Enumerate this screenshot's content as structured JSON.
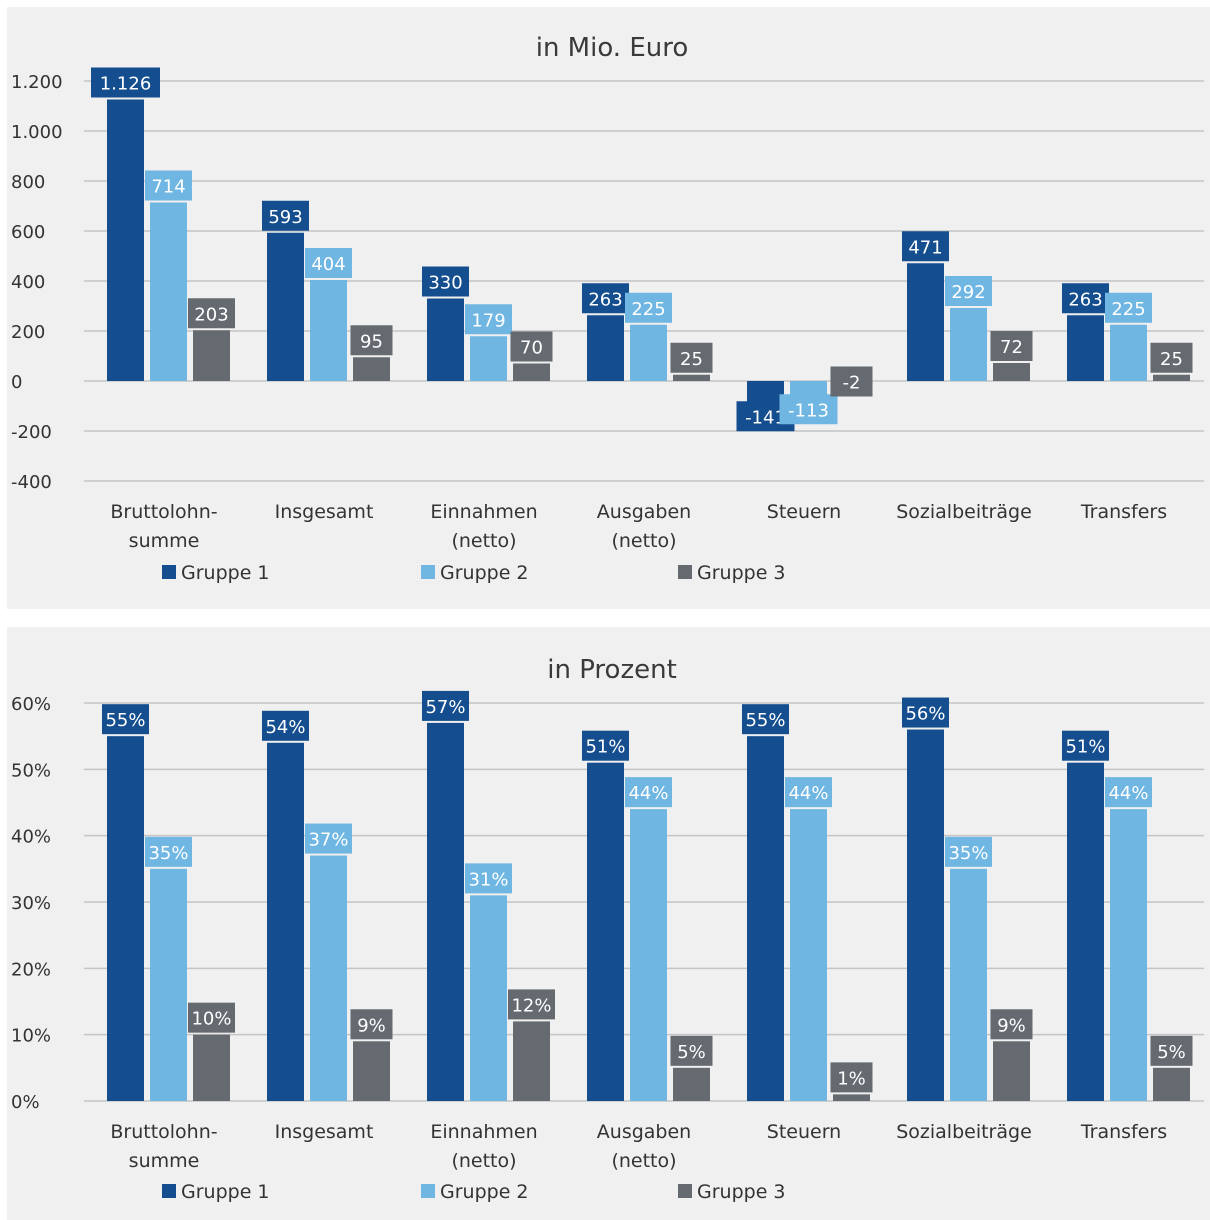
{
  "charts": [
    {
      "type": "bar",
      "title": "in Mio. Euro",
      "categories": [
        "Bruttolohn-\nsumme",
        "Insgesamt",
        "Einnahmen\n(netto)",
        "Ausgaben\n(netto)",
        "Steuern",
        "Sozialbeiträge",
        "Transfers"
      ],
      "ylim": [
        -400,
        1200
      ],
      "ytick_values": [
        -400,
        -200,
        0,
        200,
        400,
        600,
        800,
        1000,
        1200
      ],
      "ytick_labels": [
        "-400",
        "-200",
        "0",
        "200",
        "400",
        "600",
        "800",
        "1.000",
        "1.200"
      ],
      "grid": true,
      "legend_position": "bottom",
      "series": [
        {
          "name": "Gruppe 1",
          "color": "#154e8f",
          "values": [
            1126,
            593,
            330,
            263,
            -141,
            471,
            263
          ],
          "labels": [
            "1.126",
            "593",
            "330",
            "263",
            "-141",
            "471",
            "263"
          ]
        },
        {
          "name": "Gruppe 2",
          "color": "#6fb6e2",
          "values": [
            714,
            404,
            179,
            225,
            -113,
            292,
            225
          ],
          "labels": [
            "714",
            "404",
            "179",
            "225",
            "-113",
            "292",
            "225"
          ]
        },
        {
          "name": "Gruppe 3",
          "color": "#656a70",
          "values": [
            203,
            95,
            70,
            25,
            -2,
            72,
            25
          ],
          "labels": [
            "203",
            "95",
            "70",
            "25",
            "-2",
            "72",
            "25"
          ]
        }
      ]
    },
    {
      "type": "bar",
      "title": "in Prozent",
      "categories": [
        "Bruttolohn-\nsumme",
        "Insgesamt",
        "Einnahmen\n(netto)",
        "Ausgaben\n(netto)",
        "Steuern",
        "Sozialbeiträge",
        "Transfers"
      ],
      "ylim": [
        0,
        60
      ],
      "ytick_values": [
        0,
        10,
        20,
        30,
        40,
        50,
        60
      ],
      "ytick_labels": [
        "0%",
        "10%",
        "20%",
        "30%",
        "40%",
        "50%",
        "60%"
      ],
      "grid": true,
      "legend_position": "bottom",
      "series": [
        {
          "name": "Gruppe 1",
          "color": "#154e8f",
          "values": [
            55,
            54,
            57,
            51,
            55,
            56,
            51
          ],
          "labels": [
            "55%",
            "54%",
            "57%",
            "51%",
            "55%",
            "56%",
            "51%"
          ]
        },
        {
          "name": "Gruppe 2",
          "color": "#6fb6e2",
          "values": [
            35,
            37,
            31,
            44,
            44,
            35,
            44
          ],
          "labels": [
            "35%",
            "37%",
            "31%",
            "44%",
            "44%",
            "35%",
            "44%"
          ]
        },
        {
          "name": "Gruppe 3",
          "color": "#656a70",
          "values": [
            10,
            9,
            12,
            5,
            1,
            9,
            5
          ],
          "labels": [
            "10%",
            "9%",
            "12%",
            "5%",
            "1%",
            "9%",
            "5%"
          ]
        }
      ]
    }
  ]
}
